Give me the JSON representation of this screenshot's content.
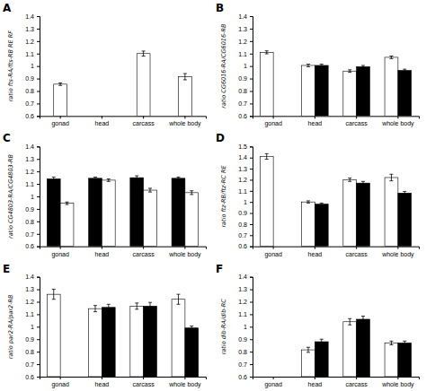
{
  "chart_data": [
    {
      "type": "bar",
      "title": "A",
      "ylabel": "ratio fts-RA/fts-RB RE RF",
      "categories": [
        "gonad",
        "head",
        "carcass",
        "whole body"
      ],
      "series": [
        {
          "color": "white",
          "values": [
            0.855,
            null,
            1.1,
            0.915
          ],
          "errors": [
            0.01,
            null,
            0.02,
            0.025
          ]
        }
      ],
      "ylim": [
        0.6,
        1.4
      ],
      "yticks": [
        0.6,
        0.7,
        0.8,
        0.9,
        1,
        1.1,
        1.2,
        1.3,
        1.4
      ]
    },
    {
      "type": "bar",
      "title": "B",
      "ylabel": "ratio CG6016-RA/CG6016-RB",
      "categories": [
        "gonad",
        "head",
        "carcass",
        "whole body"
      ],
      "series": [
        {
          "color": "white",
          "values": [
            1.11,
            1.005,
            0.96,
            1.07
          ],
          "errors": [
            0.012,
            0.01,
            0.01,
            0.01
          ]
        },
        {
          "color": "black",
          "values": [
            null,
            1.005,
            0.995,
            0.965
          ],
          "errors": [
            null,
            0.01,
            0.01,
            0.01
          ]
        }
      ],
      "ylim": [
        0.6,
        1.4
      ],
      "yticks": [
        0.6,
        0.7,
        0.8,
        0.9,
        1,
        1.1,
        1.2,
        1.3,
        1.4
      ]
    },
    {
      "type": "bar",
      "title": "C",
      "ylabel": "ratio CG4803-RA/CG4803-RB",
      "categories": [
        "gonad",
        "head",
        "carcass",
        "whole body"
      ],
      "series": [
        {
          "color": "black",
          "values": [
            1.14,
            1.145,
            1.15,
            1.145
          ],
          "errors": [
            0.015,
            0.01,
            0.015,
            0.01
          ]
        },
        {
          "color": "white",
          "values": [
            0.945,
            1.13,
            1.05,
            1.03
          ],
          "errors": [
            0.01,
            0.01,
            0.015,
            0.015
          ]
        }
      ],
      "ylim": [
        0.6,
        1.4
      ],
      "yticks": [
        0.6,
        0.7,
        0.8,
        0.9,
        1,
        1.1,
        1.2,
        1.3,
        1.4
      ]
    },
    {
      "type": "bar",
      "title": "D",
      "ylabel": "ratio ftz-RB/ftz-RC RE",
      "categories": [
        "gonad",
        "head",
        "carcass",
        "whole body"
      ],
      "series": [
        {
          "color": "white",
          "values": [
            1.41,
            1.0,
            1.2,
            1.22
          ],
          "errors": [
            0.025,
            0.01,
            0.015,
            0.03
          ]
        },
        {
          "color": "black",
          "values": [
            null,
            0.98,
            1.17,
            1.08
          ],
          "errors": [
            null,
            0.01,
            0.015,
            0.015
          ]
        }
      ],
      "ylim": [
        0.6,
        1.5
      ],
      "yticks": [
        0.6,
        0.7,
        0.8,
        0.9,
        1,
        1.1,
        1.2,
        1.3,
        1.4,
        1.5
      ]
    },
    {
      "type": "bar",
      "title": "E",
      "ylabel": "ratio par2-RA/par2-RB",
      "categories": [
        "gonad",
        "head",
        "carcass",
        "whole body"
      ],
      "series": [
        {
          "color": "white",
          "values": [
            1.26,
            1.145,
            1.165,
            1.22
          ],
          "errors": [
            0.04,
            0.025,
            0.025,
            0.04
          ]
        },
        {
          "color": "black",
          "values": [
            null,
            1.155,
            1.165,
            0.99
          ],
          "errors": [
            null,
            0.025,
            0.03,
            0.015
          ]
        }
      ],
      "ylim": [
        0.6,
        1.4
      ],
      "yticks": [
        0.6,
        0.7,
        0.8,
        0.9,
        1,
        1.1,
        1.2,
        1.3,
        1.4
      ]
    },
    {
      "type": "bar",
      "title": "F",
      "ylabel": "ratio dib-RA/dib-RC",
      "categories": [
        "gonad",
        "head",
        "carcass",
        "whole body"
      ],
      "series": [
        {
          "color": "white",
          "values": [
            null,
            0.815,
            1.04,
            0.87
          ],
          "errors": [
            null,
            0.02,
            0.025,
            0.015
          ]
        },
        {
          "color": "black",
          "values": [
            null,
            0.88,
            1.06,
            0.87
          ],
          "errors": [
            null,
            0.02,
            0.025,
            0.015
          ]
        }
      ],
      "ylim": [
        0.6,
        1.4
      ],
      "yticks": [
        0.6,
        0.7,
        0.8,
        0.9,
        1,
        1.1,
        1.2,
        1.3,
        1.4
      ]
    }
  ]
}
